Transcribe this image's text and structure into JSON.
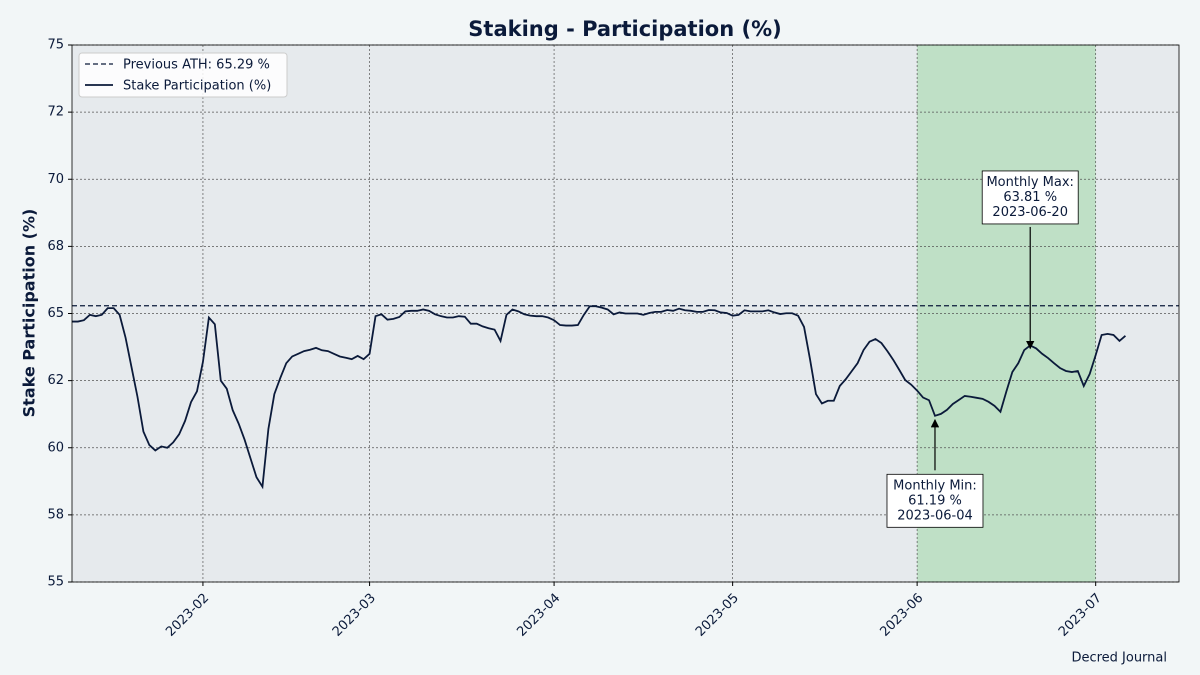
{
  "chart_data": {
    "type": "line",
    "title": "Staking - Participation (%)",
    "ylabel": "Stake Participation (%)",
    "credit": "Decred Journal",
    "x": [
      "2023-01-10",
      "2023-01-11",
      "2023-01-12",
      "2023-01-13",
      "2023-01-14",
      "2023-01-15",
      "2023-01-16",
      "2023-01-17",
      "2023-01-18",
      "2023-01-19",
      "2023-01-20",
      "2023-01-21",
      "2023-01-22",
      "2023-01-23",
      "2023-01-24",
      "2023-01-25",
      "2023-01-26",
      "2023-01-27",
      "2023-01-28",
      "2023-01-29",
      "2023-01-30",
      "2023-01-31",
      "2023-02-01",
      "2023-02-02",
      "2023-02-03",
      "2023-02-04",
      "2023-02-05",
      "2023-02-06",
      "2023-02-07",
      "2023-02-08",
      "2023-02-09",
      "2023-02-10",
      "2023-02-11",
      "2023-02-12",
      "2023-02-13",
      "2023-02-14",
      "2023-02-15",
      "2023-02-16",
      "2023-02-17",
      "2023-02-18",
      "2023-02-19",
      "2023-02-20",
      "2023-02-21",
      "2023-02-22",
      "2023-02-23",
      "2023-02-24",
      "2023-02-25",
      "2023-02-26",
      "2023-02-27",
      "2023-02-28",
      "2023-03-01",
      "2023-03-02",
      "2023-03-03",
      "2023-03-04",
      "2023-03-05",
      "2023-03-06",
      "2023-03-07",
      "2023-03-08",
      "2023-03-09",
      "2023-03-10",
      "2023-03-11",
      "2023-03-12",
      "2023-03-13",
      "2023-03-14",
      "2023-03-15",
      "2023-03-16",
      "2023-03-17",
      "2023-03-18",
      "2023-03-19",
      "2023-03-20",
      "2023-03-21",
      "2023-03-22",
      "2023-03-23",
      "2023-03-24",
      "2023-03-25",
      "2023-03-26",
      "2023-03-27",
      "2023-03-28",
      "2023-03-29",
      "2023-03-30",
      "2023-03-31",
      "2023-04-01",
      "2023-04-02",
      "2023-04-03",
      "2023-04-04",
      "2023-04-05",
      "2023-04-06",
      "2023-04-07",
      "2023-04-08",
      "2023-04-09",
      "2023-04-10",
      "2023-04-11",
      "2023-04-12",
      "2023-04-13",
      "2023-04-14",
      "2023-04-15",
      "2023-04-16",
      "2023-04-17",
      "2023-04-18",
      "2023-04-19",
      "2023-04-20",
      "2023-04-21",
      "2023-04-22",
      "2023-04-23",
      "2023-04-24",
      "2023-04-25",
      "2023-04-26",
      "2023-04-27",
      "2023-04-28",
      "2023-04-29",
      "2023-04-30",
      "2023-05-01",
      "2023-05-02",
      "2023-05-03",
      "2023-05-04",
      "2023-05-05",
      "2023-05-06",
      "2023-05-07",
      "2023-05-08",
      "2023-05-09",
      "2023-05-10",
      "2023-05-11",
      "2023-05-12",
      "2023-05-13",
      "2023-05-14",
      "2023-05-15",
      "2023-05-16",
      "2023-05-17",
      "2023-05-18",
      "2023-05-19",
      "2023-05-20",
      "2023-05-21",
      "2023-05-22",
      "2023-05-23",
      "2023-05-24",
      "2023-05-25",
      "2023-05-26",
      "2023-05-27",
      "2023-05-28",
      "2023-05-29",
      "2023-05-30",
      "2023-05-31",
      "2023-06-01",
      "2023-06-02",
      "2023-06-03",
      "2023-06-04",
      "2023-06-05",
      "2023-06-06",
      "2023-06-07",
      "2023-06-08",
      "2023-06-09",
      "2023-06-10",
      "2023-06-11",
      "2023-06-12",
      "2023-06-13",
      "2023-06-14",
      "2023-06-15",
      "2023-06-16",
      "2023-06-17",
      "2023-06-18",
      "2023-06-19",
      "2023-06-20",
      "2023-06-21",
      "2023-06-22",
      "2023-06-23",
      "2023-06-24",
      "2023-06-25",
      "2023-06-26",
      "2023-06-27",
      "2023-06-28",
      "2023-06-29",
      "2023-06-30",
      "2023-07-01",
      "2023-07-02",
      "2023-07-03",
      "2023-07-04",
      "2023-07-05",
      "2023-07-06"
    ],
    "series": [
      {
        "name": "Stake Participation (%)",
        "color": "#0b1a3a",
        "values": [
          64.7,
          64.7,
          64.75,
          64.95,
          64.9,
          64.95,
          65.2,
          65.2,
          64.95,
          64.1,
          63.0,
          61.9,
          60.6,
          60.1,
          59.9,
          60.05,
          60.0,
          60.2,
          60.5,
          61.0,
          61.7,
          62.1,
          63.2,
          64.85,
          64.6,
          62.5,
          62.2,
          61.4,
          60.9,
          60.3,
          59.6,
          58.9,
          58.55,
          60.7,
          62.0,
          62.6,
          63.15,
          63.4,
          63.5,
          63.6,
          63.65,
          63.72,
          63.63,
          63.6,
          63.5,
          63.4,
          63.35,
          63.3,
          63.42,
          63.3,
          63.5,
          64.9,
          64.97,
          64.77,
          64.8,
          64.87,
          65.08,
          65.1,
          65.1,
          65.15,
          65.1,
          64.97,
          64.9,
          64.85,
          64.85,
          64.9,
          64.88,
          64.62,
          64.62,
          64.52,
          64.45,
          64.4,
          63.98,
          64.95,
          65.15,
          65.08,
          64.97,
          64.92,
          64.9,
          64.9,
          64.85,
          64.75,
          64.57,
          64.55,
          64.55,
          64.57,
          64.95,
          65.27,
          65.27,
          65.22,
          65.15,
          64.97,
          65.04,
          65.0,
          65.0,
          65.0,
          64.95,
          65.02,
          65.06,
          65.06,
          65.13,
          65.1,
          65.18,
          65.12,
          65.1,
          65.06,
          65.06,
          65.13,
          65.12,
          65.04,
          65.02,
          64.92,
          64.95,
          65.12,
          65.08,
          65.08,
          65.08,
          65.12,
          65.04,
          64.98,
          65.01,
          65.01,
          64.92,
          64.5,
          63.3,
          62.0,
          61.65,
          61.75,
          61.75,
          62.3,
          62.55,
          62.85,
          63.15,
          63.64,
          63.95,
          64.05,
          63.9,
          63.6,
          63.27,
          62.9,
          62.52,
          62.35,
          62.13,
          61.87,
          61.77,
          61.19,
          61.26,
          61.41,
          61.63,
          61.78,
          61.93,
          61.9,
          61.86,
          61.82,
          61.71,
          61.56,
          61.34,
          62.1,
          62.82,
          63.15,
          63.64,
          63.81,
          63.7,
          63.5,
          63.34,
          63.15,
          62.97,
          62.86,
          62.82,
          62.86,
          62.3,
          62.75,
          63.45,
          64.2,
          64.24,
          64.2,
          63.98,
          64.17
        ]
      }
    ],
    "reference_line": {
      "name": "Previous ATH: 65.29 %",
      "value": 65.29,
      "color": "#0b1a3a"
    },
    "highlight": {
      "start": "2023-06-01",
      "end": "2023-07-01",
      "color": "#bfe0c6"
    },
    "annotations": [
      {
        "text": [
          "Monthly Max:",
          "63.81 %",
          "2023-06-20"
        ],
        "x": "2023-06-20",
        "y": 63.81
      },
      {
        "text": [
          "Monthly Min:",
          "61.19 %",
          "2023-06-04"
        ],
        "x": "2023-06-04",
        "y": 61.19
      }
    ],
    "xlim": [
      "2023-01-10",
      "2023-07-15"
    ],
    "xticks": [
      {
        "value": "2023-02-01",
        "label": "2023-02"
      },
      {
        "value": "2023-03-01",
        "label": "2023-03"
      },
      {
        "value": "2023-04-01",
        "label": "2023-04"
      },
      {
        "value": "2023-05-01",
        "label": "2023-05"
      },
      {
        "value": "2023-06-01",
        "label": "2023-06"
      },
      {
        "value": "2023-07-01",
        "label": "2023-07"
      }
    ],
    "ylim": [
      55,
      75
    ],
    "yticks": [
      55,
      {
        "value": 57.5,
        "label": "58"
      },
      60,
      {
        "value": 62.5,
        "label": "62"
      },
      65,
      {
        "value": 67.5,
        "label": "68"
      },
      70,
      {
        "value": 72.5,
        "label": "72"
      },
      75
    ],
    "grid": true,
    "legend": "upper left"
  }
}
